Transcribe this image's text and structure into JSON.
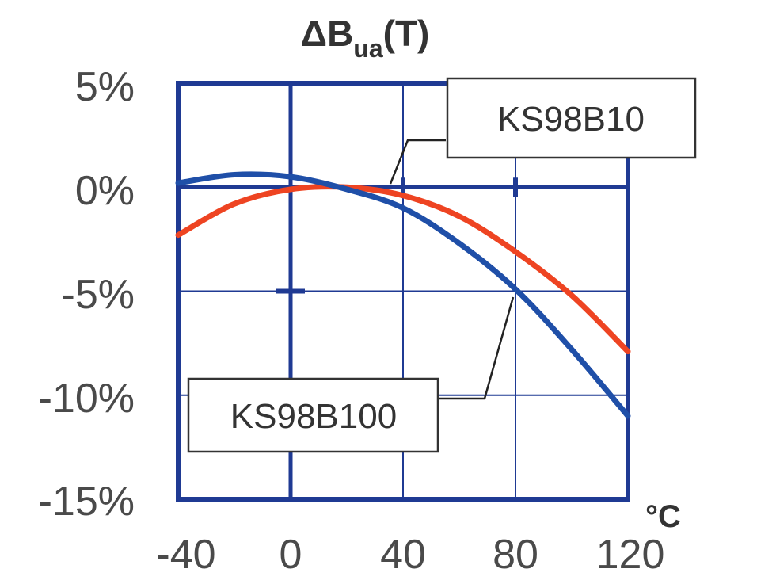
{
  "chart_data": {
    "type": "line",
    "title": "ΔBua(T)",
    "title_main": "ΔB",
    "title_sub": "ua",
    "title_suffix": "(T)",
    "xlabel": "°C",
    "ylabel": "",
    "xlim": [
      -40,
      120
    ],
    "ylim": [
      -15,
      5
    ],
    "x_ticks": [
      -40,
      0,
      40,
      80,
      120
    ],
    "x_tick_labels": [
      "-40",
      "0",
      "40",
      "80",
      "120"
    ],
    "y_ticks": [
      5,
      0,
      -5,
      -10,
      -15
    ],
    "y_tick_labels": [
      "5%",
      "0%",
      "-5%",
      "-10%",
      "-15%"
    ],
    "grid": true,
    "series": [
      {
        "name": "KS98B10",
        "color": "#ee4422",
        "x": [
          -40,
          -20,
          0,
          20,
          40,
          60,
          80,
          100,
          120
        ],
        "y": [
          -2.3,
          -0.8,
          -0.1,
          0.0,
          -0.4,
          -1.4,
          -3.1,
          -5.2,
          -7.9
        ]
      },
      {
        "name": "KS98B100",
        "color": "#1f4fa8",
        "x": [
          -40,
          -20,
          0,
          20,
          40,
          60,
          80,
          100,
          120
        ],
        "y": [
          0.2,
          0.6,
          0.5,
          -0.1,
          -1.0,
          -2.7,
          -4.9,
          -7.8,
          -11.0
        ]
      }
    ],
    "annotations": [
      {
        "label": "KS98B10",
        "series": "KS98B10"
      },
      {
        "label": "KS98B100",
        "series": "KS98B100"
      }
    ]
  }
}
